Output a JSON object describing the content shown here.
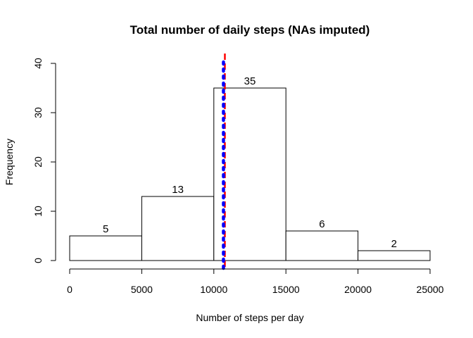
{
  "chart_data": {
    "type": "bar",
    "title": "Total number of daily steps (NAs imputed)",
    "xlabel": "Number of steps per day",
    "ylabel": "Frequency",
    "bins": [
      {
        "from": 0,
        "to": 5000,
        "count": 5
      },
      {
        "from": 5000,
        "to": 10000,
        "count": 13
      },
      {
        "from": 10000,
        "to": 15000,
        "count": 35
      },
      {
        "from": 15000,
        "to": 20000,
        "count": 6
      },
      {
        "from": 20000,
        "to": 25000,
        "count": 2
      }
    ],
    "bar_labels": [
      "5",
      "13",
      "35",
      "6",
      "2"
    ],
    "xlim": [
      0,
      25000
    ],
    "ylim": [
      0,
      40
    ],
    "x_ticks": [
      0,
      5000,
      10000,
      15000,
      20000,
      25000
    ],
    "x_tick_labels": [
      "0",
      "5000",
      "10000",
      "15000",
      "20000",
      "25000"
    ],
    "y_ticks": [
      0,
      10,
      20,
      30,
      40
    ],
    "y_tick_labels": [
      "0",
      "10",
      "20",
      "30",
      "40"
    ],
    "reference_lines": [
      {
        "x": 10766,
        "color": "#ff0000",
        "style": "dashed"
      },
      {
        "x": 10766,
        "color": "#0000ff",
        "style": "dotted"
      }
    ],
    "bar_fill": "#ffffff",
    "bar_stroke": "#000000",
    "grid": false
  }
}
